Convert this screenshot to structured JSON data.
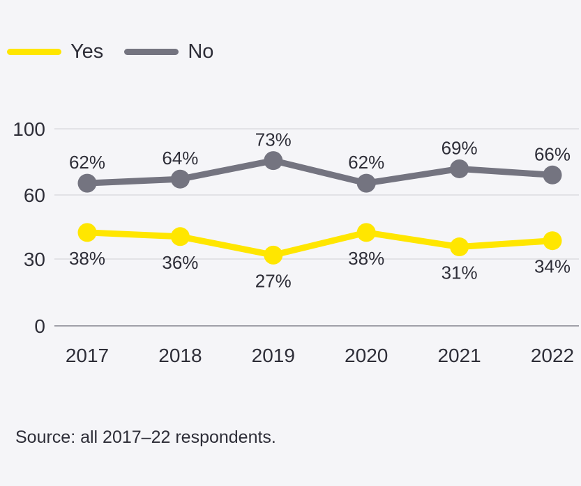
{
  "page": {
    "background": "#f5f5f8"
  },
  "legend": {
    "items": [
      {
        "label": "Yes",
        "color": "#ffe600"
      },
      {
        "label": "No",
        "color": "#747480"
      }
    ]
  },
  "chart_data": {
    "type": "line",
    "title": "",
    "categories": [
      "2017",
      "2018",
      "2019",
      "2020",
      "2021",
      "2022"
    ],
    "series": [
      {
        "name": "No",
        "color": "#747480",
        "values": [
          62,
          64,
          73,
          62,
          69,
          66
        ],
        "point_labels": [
          "62%",
          "64%",
          "73%",
          "62%",
          "69%",
          "66%"
        ],
        "label_position": "above"
      },
      {
        "name": "Yes",
        "color": "#ffe600",
        "values": [
          38,
          36,
          27,
          38,
          31,
          34
        ],
        "point_labels": [
          "38%",
          "36%",
          "27%",
          "38%",
          "31%",
          "34%"
        ],
        "label_position": "below"
      }
    ],
    "y_axis": {
      "tick_labels": [
        "100",
        "60",
        "30",
        "0"
      ],
      "tick_values": [
        100,
        60,
        30,
        0
      ],
      "range": [
        0,
        100
      ]
    },
    "grid": true,
    "legend_entries": [
      "Yes",
      "No"
    ],
    "legend_position": "top-left"
  },
  "source": {
    "text": "Source: all 2017–22 respondents."
  },
  "colors": {
    "text": "#2e2e38",
    "gridline": "#d7d7dc",
    "axis_line": "#9f9fa8",
    "yes": "#ffe600",
    "no": "#747480",
    "background": "#f5f5f8"
  }
}
